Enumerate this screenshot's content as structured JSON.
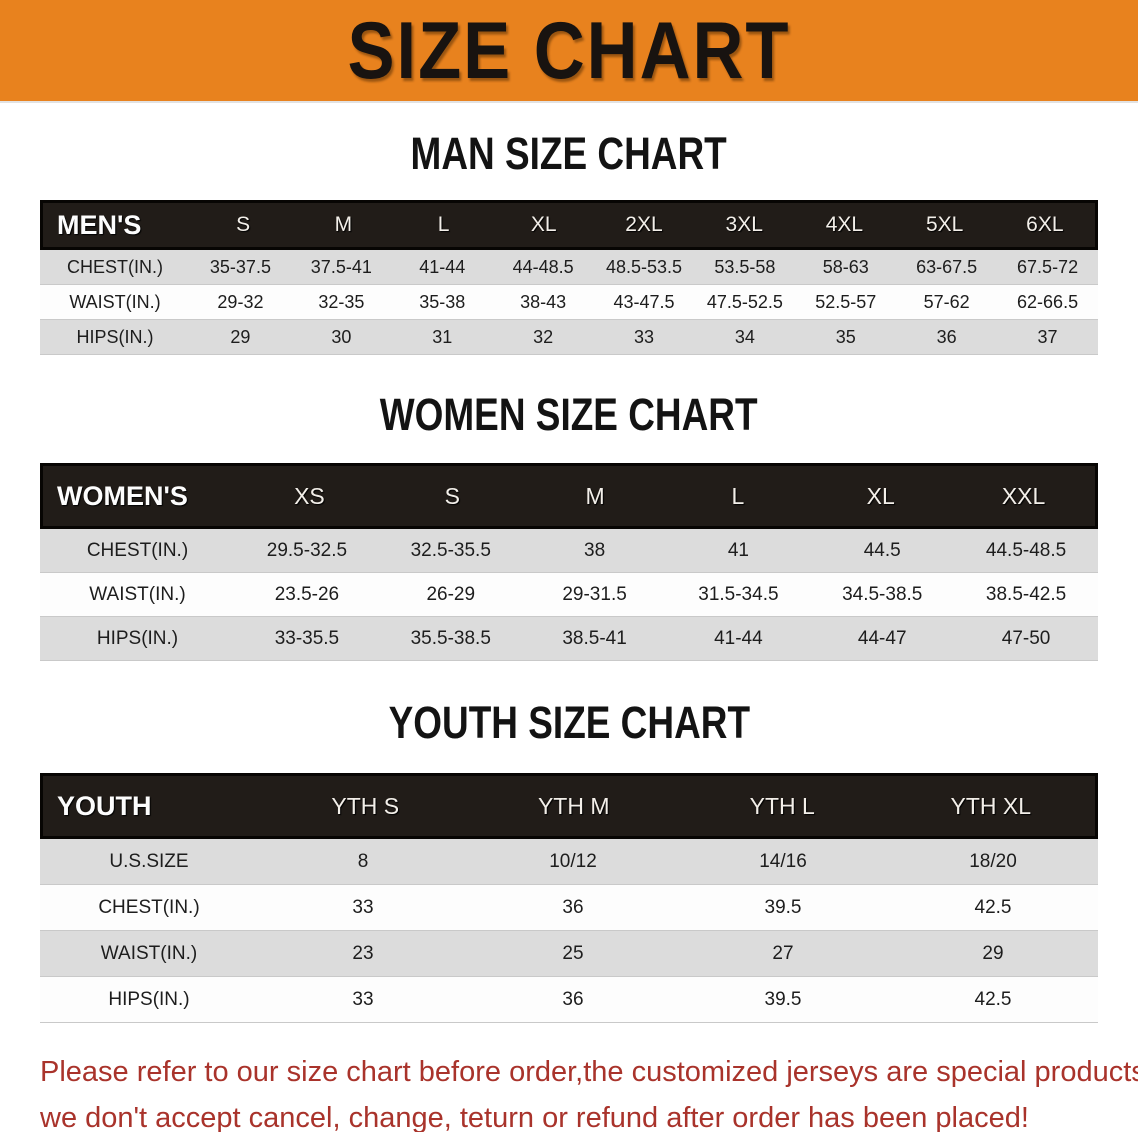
{
  "banner": {
    "title": "SIZE CHART",
    "bg_color": "#e8821e",
    "text_color": "#181310"
  },
  "sections": {
    "men": {
      "heading": "MAN SIZE CHART",
      "header_label": "MEN'S",
      "columns": [
        "S",
        "M",
        "L",
        "XL",
        "2XL",
        "3XL",
        "4XL",
        "5XL",
        "6XL"
      ],
      "rows": [
        {
          "label": "CHEST(IN.)",
          "values": [
            "35-37.5",
            "37.5-41",
            "41-44",
            "44-48.5",
            "48.5-53.5",
            "53.5-58",
            "58-63",
            "63-67.5",
            "67.5-72"
          ]
        },
        {
          "label": "WAIST(IN.)",
          "values": [
            "29-32",
            "32-35",
            "35-38",
            "38-43",
            "43-47.5",
            "47.5-52.5",
            "52.5-57",
            "57-62",
            "62-66.5"
          ]
        },
        {
          "label": "HIPS(IN.)",
          "values": [
            "29",
            "30",
            "31",
            "32",
            "33",
            "34",
            "35",
            "36",
            "37"
          ]
        }
      ]
    },
    "women": {
      "heading": "WOMEN SIZE CHART",
      "header_label": "WOMEN'S",
      "columns": [
        "XS",
        "S",
        "M",
        "L",
        "XL",
        "XXL"
      ],
      "rows": [
        {
          "label": "CHEST(IN.)",
          "values": [
            "29.5-32.5",
            "32.5-35.5",
            "38",
            "41",
            "44.5",
            "44.5-48.5"
          ]
        },
        {
          "label": "WAIST(IN.)",
          "values": [
            "23.5-26",
            "26-29",
            "29-31.5",
            "31.5-34.5",
            "34.5-38.5",
            "38.5-42.5"
          ]
        },
        {
          "label": "HIPS(IN.)",
          "values": [
            "33-35.5",
            "35.5-38.5",
            "38.5-41",
            "41-44",
            "44-47",
            "47-50"
          ]
        }
      ]
    },
    "youth": {
      "heading": "YOUTH SIZE CHART",
      "header_label": "YOUTH",
      "columns": [
        "YTH S",
        "YTH M",
        "YTH L",
        "YTH XL"
      ],
      "rows": [
        {
          "label": "U.S.SIZE",
          "values": [
            "8",
            "10/12",
            "14/16",
            "18/20"
          ]
        },
        {
          "label": "CHEST(IN.)",
          "values": [
            "33",
            "36",
            "39.5",
            "42.5"
          ]
        },
        {
          "label": "WAIST(IN.)",
          "values": [
            "23",
            "25",
            "27",
            "29"
          ]
        },
        {
          "label": "HIPS(IN.)",
          "values": [
            "33",
            "36",
            "39.5",
            "42.5"
          ]
        }
      ]
    }
  },
  "disclaimer": {
    "color": "#a9332b",
    "lines": [
      "Please refer to our size chart before order,the customized jerseys are special products,",
      "we don't accept cancel, change, teturn or refund after order has been placed!"
    ]
  }
}
